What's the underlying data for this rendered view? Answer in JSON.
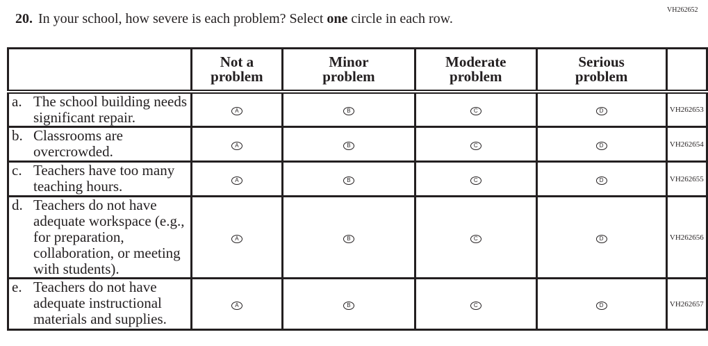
{
  "question_id": "VH262652",
  "question": {
    "number": "20.",
    "text_before": "In your school, how severe is each problem? Select ",
    "text_bold": "one",
    "text_after": " circle in each row."
  },
  "columns": [
    "Not a problem",
    "Minor problem",
    "Moderate problem",
    "Serious problem"
  ],
  "options": [
    "A",
    "B",
    "C",
    "D"
  ],
  "rows": [
    {
      "letter": "a.",
      "text": "The school building needs significant repair.",
      "id": "VH262653"
    },
    {
      "letter": "b.",
      "text": "Classrooms are overcrowded.",
      "id": "VH262654"
    },
    {
      "letter": "c.",
      "text": "Teachers have too many teaching hours.",
      "id": "VH262655"
    },
    {
      "letter": "d.",
      "text": "Teachers do not have adequate workspace (e.g., for preparation, collaboration, or meeting with students).",
      "id": "VH262656"
    },
    {
      "letter": "e.",
      "text": "Teachers do not have adequate instructional materials and supplies.",
      "id": "VH262657"
    }
  ]
}
